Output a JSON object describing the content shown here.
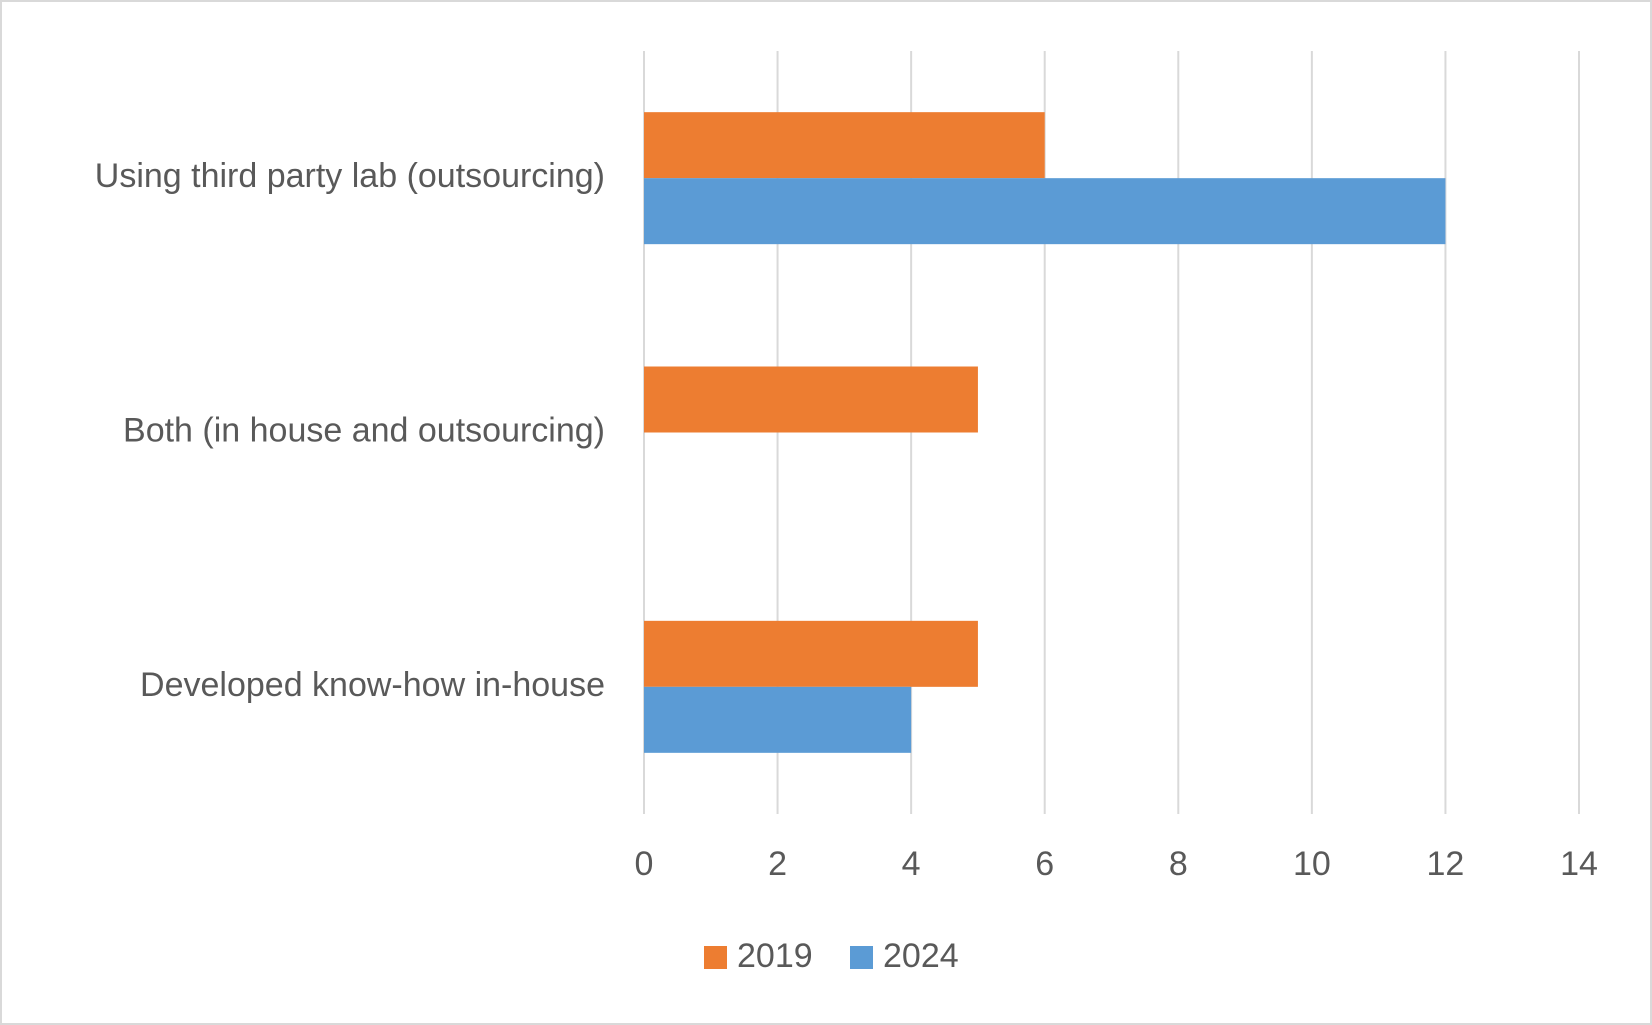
{
  "chart_data": {
    "type": "barh",
    "categories": [
      "Using third party lab (outsourcing)",
      "Both (in house and outsourcing)",
      "Developed know-how in-house"
    ],
    "series": [
      {
        "name": "2019",
        "color": "#ed7d31",
        "values": [
          6,
          5,
          5
        ]
      },
      {
        "name": "2024",
        "color": "#5b9bd5",
        "values": [
          12,
          0,
          4
        ]
      }
    ],
    "xlim": [
      0,
      14
    ],
    "xticks": [
      0,
      2,
      4,
      6,
      8,
      10,
      12,
      14
    ],
    "grid": true,
    "legend": "bottom"
  }
}
